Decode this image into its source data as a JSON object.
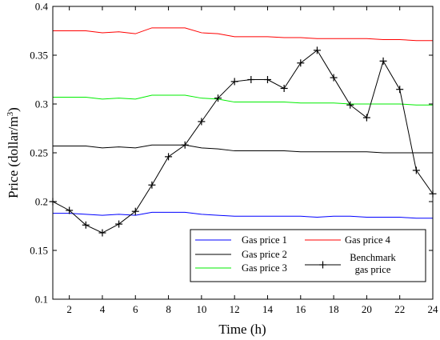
{
  "chart_data": {
    "type": "line",
    "xlabel": "Time (h)",
    "ylabel_main": "Price (dollar/m",
    "ylabel_sup": "3",
    "ylabel_close": ")",
    "xlim": [
      1,
      24
    ],
    "ylim": [
      0.1,
      0.4
    ],
    "xticks": [
      2,
      4,
      6,
      8,
      10,
      12,
      14,
      16,
      18,
      20,
      22,
      24
    ],
    "yticks": [
      0.1,
      0.15,
      0.2,
      0.25,
      0.3,
      0.35,
      0.4
    ],
    "ytick_labels": [
      "0.1",
      "0.15",
      "0.2",
      "0.25",
      "0.3",
      "0.35",
      "0.4"
    ],
    "grid": false,
    "legend_position": "bottom-right",
    "x": [
      1,
      2,
      3,
      4,
      5,
      6,
      7,
      8,
      9,
      10,
      11,
      12,
      13,
      14,
      15,
      16,
      17,
      18,
      19,
      20,
      21,
      22,
      23,
      24
    ],
    "series": [
      {
        "name": "Gas price 1",
        "color": "#0000ff",
        "marker": "none",
        "values": [
          0.188,
          0.188,
          0.187,
          0.186,
          0.187,
          0.186,
          0.189,
          0.189,
          0.189,
          0.187,
          0.186,
          0.185,
          0.185,
          0.185,
          0.185,
          0.185,
          0.184,
          0.185,
          0.185,
          0.184,
          0.184,
          0.184,
          0.183,
          0.183
        ]
      },
      {
        "name": "Gas price 2",
        "color": "#000000",
        "marker": "none",
        "values": [
          0.257,
          0.257,
          0.257,
          0.255,
          0.256,
          0.255,
          0.258,
          0.258,
          0.258,
          0.255,
          0.254,
          0.252,
          0.252,
          0.252,
          0.252,
          0.251,
          0.251,
          0.251,
          0.251,
          0.251,
          0.25,
          0.25,
          0.25,
          0.25
        ]
      },
      {
        "name": "Gas price 3",
        "color": "#00ee00",
        "marker": "none",
        "values": [
          0.307,
          0.307,
          0.307,
          0.305,
          0.306,
          0.305,
          0.309,
          0.309,
          0.309,
          0.306,
          0.305,
          0.302,
          0.302,
          0.302,
          0.302,
          0.301,
          0.301,
          0.301,
          0.3,
          0.3,
          0.3,
          0.3,
          0.299,
          0.299
        ]
      },
      {
        "name": "Gas price 4",
        "color": "#ff0000",
        "marker": "none",
        "values": [
          0.375,
          0.375,
          0.375,
          0.373,
          0.374,
          0.372,
          0.378,
          0.378,
          0.378,
          0.373,
          0.372,
          0.369,
          0.369,
          0.369,
          0.368,
          0.368,
          0.367,
          0.367,
          0.367,
          0.367,
          0.366,
          0.366,
          0.365,
          0.365
        ]
      },
      {
        "name_line1": "Benchmark",
        "name_line2": "gas price",
        "color": "#000000",
        "marker": "plus",
        "values": [
          0.2,
          0.191,
          0.176,
          0.168,
          0.177,
          0.19,
          0.217,
          0.246,
          0.258,
          0.282,
          0.306,
          0.323,
          0.325,
          0.325,
          0.316,
          0.342,
          0.355,
          0.327,
          0.299,
          0.286,
          0.344,
          0.315,
          0.232,
          0.208
        ]
      }
    ]
  }
}
